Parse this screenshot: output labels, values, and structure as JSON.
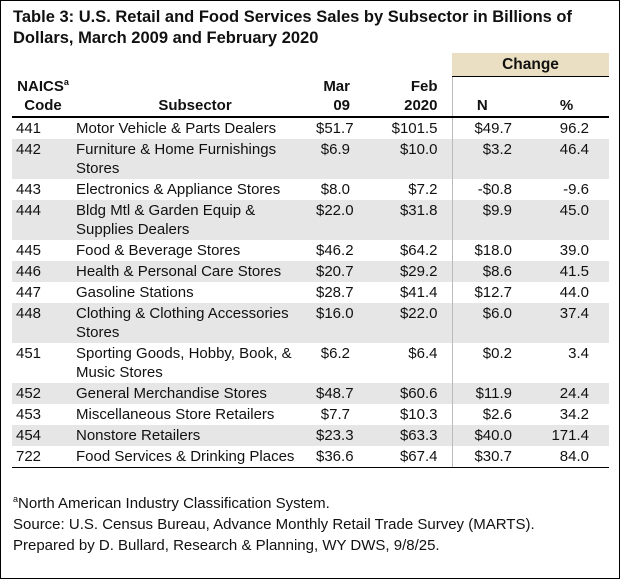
{
  "title": "Table 3: U.S. Retail and Food Services Sales by Subsector in Billions of Dollars, March 2009 and February 2020",
  "header": {
    "change": "Change",
    "naics": "NAICS",
    "naics_sup": "a",
    "code": "Code",
    "subsector": "Subsector",
    "mar": [
      "Mar",
      "09"
    ],
    "feb": [
      "Feb",
      "2020"
    ],
    "n": "N",
    "pct": "%"
  },
  "table": {
    "rows": [
      [
        "441",
        "Motor Vehicle & Parts Dealers",
        "$51.7",
        "$101.5",
        "$49.7",
        "96.2"
      ],
      [
        "442",
        "Furniture & Home Furnishings Stores",
        "$6.9",
        "$10.0",
        "$3.2",
        "46.4"
      ],
      [
        "443",
        "Electronics & Appliance Stores",
        "$8.0",
        "$7.2",
        "-$0.8",
        "-9.6"
      ],
      [
        "444",
        "Bldg Mtl & Garden Equip & Supplies Dealers",
        "$22.0",
        "$31.8",
        "$9.9",
        "45.0"
      ],
      [
        "445",
        "Food & Beverage Stores",
        "$46.2",
        "$64.2",
        "$18.0",
        "39.0"
      ],
      [
        "446",
        "Health & Personal Care Stores",
        "$20.7",
        "$29.2",
        "$8.6",
        "41.5"
      ],
      [
        "447",
        "Gasoline Stations",
        "$28.7",
        "$41.4",
        "$12.7",
        "44.0"
      ],
      [
        "448",
        "Clothing & Clothing Accessories Stores",
        "$16.0",
        "$22.0",
        "$6.0",
        "37.4"
      ],
      [
        "451",
        "Sporting Goods, Hobby, Book, & Music Stores",
        "$6.2",
        "$6.4",
        "$0.2",
        "3.4"
      ],
      [
        "452",
        "General Merchandise Stores",
        "$48.7",
        "$60.6",
        "$11.9",
        "24.4"
      ],
      [
        "453",
        "Miscellaneous Store Retailers",
        "$7.7",
        "$10.3",
        "$2.6",
        "34.2"
      ],
      [
        "454",
        "Nonstore Retailers",
        "$23.3",
        "$63.3",
        "$40.0",
        "171.4"
      ],
      [
        "722",
        "Food Services & Drinking Places",
        "$36.6",
        "$67.4",
        "$30.7",
        "84.0"
      ]
    ]
  },
  "notes": {
    "sup": "a",
    "footnote": "North American Industry Classification System.",
    "source": "Source: U.S. Census Bureau, Advance Monthly Retail Trade Survey (MARTS).",
    "prepared": "Prepared by D. Bullard, Research & Planning, WY DWS, 9/8/25."
  }
}
